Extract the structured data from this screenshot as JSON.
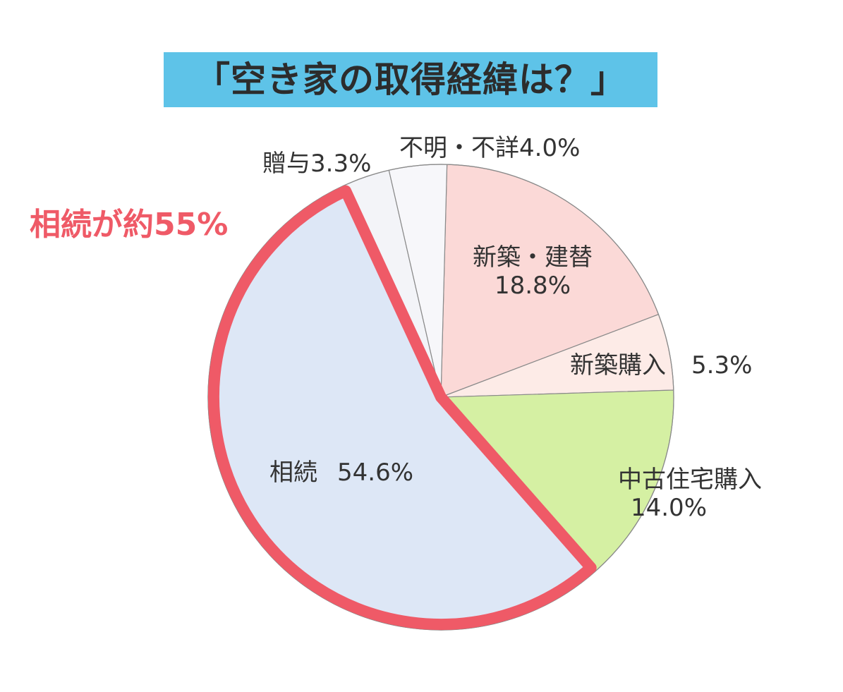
{
  "chart_data": {
    "type": "pie",
    "title": "「空き家の取得経緯は？」",
    "callout": "相続が約55%",
    "slices": [
      {
        "label": "新築・建替",
        "value": 18.8,
        "value_text": "18.8%",
        "color": "#fbd9d7"
      },
      {
        "label": "新築購入",
        "value": 5.3,
        "value_text": "5.3%",
        "color": "#fdebe7"
      },
      {
        "label": "中古住宅購入",
        "value": 14.0,
        "value_text": "14.0%",
        "color": "#d5f0a3"
      },
      {
        "label": "相続",
        "value": 54.6,
        "value_text": "54.6%",
        "color": "#dde7f6"
      },
      {
        "label": "贈与",
        "value": 3.3,
        "value_text": "3.3%",
        "color": "#f3f4f8"
      },
      {
        "label": "不明・不詳",
        "value": 4.0,
        "value_text": "4.0%",
        "color": "#f7f7fa"
      }
    ],
    "highlight": {
      "slice": "相続",
      "color": "#ef5a67"
    }
  }
}
